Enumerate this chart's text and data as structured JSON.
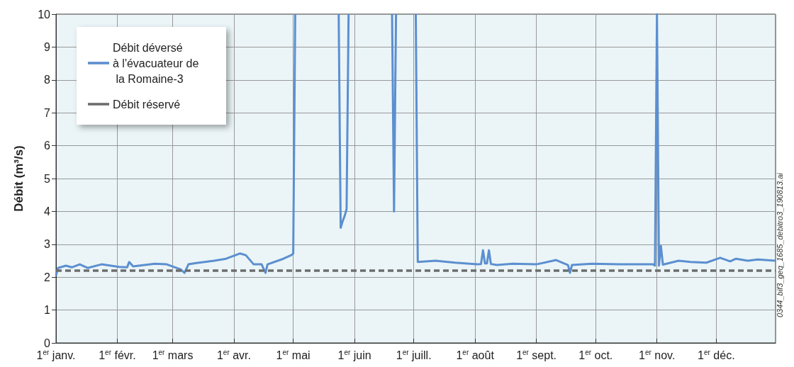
{
  "chart_data": {
    "type": "line",
    "ylabel": "Débit (m³/s)",
    "xlim": [
      "--01-01",
      "--12-31"
    ],
    "xticks": [
      {
        "value": "--01-01",
        "label": "1$^{er}$ janv."
      },
      {
        "value": "--02-01",
        "label": "1$^{er}$ févr."
      },
      {
        "value": "--03-01",
        "label": "1$^{er}$ mars"
      },
      {
        "value": "--04-01",
        "label": "1$^{er}$ avr."
      },
      {
        "value": "--05-01",
        "label": "1$^{er}$ mai"
      },
      {
        "value": "--06-01",
        "label": "1$^{er}$ juin"
      },
      {
        "value": "--07-01",
        "label": "1$^{er}$ juill."
      },
      {
        "value": "--08-01",
        "label": "1$^{er}$ août"
      },
      {
        "value": "--09-01",
        "label": "1$^{er}$ sept."
      },
      {
        "value": "--10-01",
        "label": "1$^{er}$ oct."
      },
      {
        "value": "--11-01",
        "label": "1$^{er}$ nov."
      },
      {
        "value": "--12-01",
        "label": "1$^{er}$ déc."
      }
    ],
    "ylim": [
      0,
      10
    ],
    "yticks": [
      0,
      1,
      2,
      3,
      4,
      5,
      6,
      7,
      8,
      9,
      10
    ],
    "grid": true,
    "legend": "top left",
    "series": [
      {
        "name": "Débit déversé à l'évacuateur de la Romaine-3",
        "color": "#5b8fcf",
        "line_style": "solid",
        "x": [
          "--01-01",
          "--01-02",
          "--01-06",
          "--01-09",
          "--01-13",
          "--01-17",
          "--01-24",
          "--02-02",
          "--02-06",
          "--02-07",
          "--02-09",
          "--02-20",
          "--02-26",
          "--03-05",
          "--03-07",
          "--03-09",
          "--03-13",
          "--03-22",
          "--03-28",
          "--04-04",
          "--04-07",
          "--04-11",
          "--04-15",
          "--04-17",
          "--04-18",
          "--04-26",
          "--04-30",
          "--05-01",
          "--05-02",
          "--05-10",
          "--05-24",
          "--05-25",
          "--05-26",
          "--05-27",
          "--05-28",
          "--05-29",
          "--06-10",
          "--06-20",
          "--06-21",
          "--06-22",
          "--06-28",
          "--07-02",
          "--07-03",
          "--07-12",
          "--07-22",
          "--08-02",
          "--08-04",
          "--08-05",
          "--08-06",
          "--08-07",
          "--08-08",
          "--08-09",
          "--08-12",
          "--08-20",
          "--09-01",
          "--09-11",
          "--09-17",
          "--09-18",
          "--09-19",
          "--09-29",
          "--10-13",
          "--10-30",
          "--10-31",
          "--11-01",
          "--11-02",
          "--11-03",
          "--11-04",
          "--11-12",
          "--11-18",
          "--11-26",
          "--12-03",
          "--12-08",
          "--12-11",
          "--12-17",
          "--12-22",
          "--12-31"
        ],
        "values": [
          2.05,
          2.28,
          2.35,
          2.3,
          2.39,
          2.28,
          2.39,
          2.31,
          2.3,
          2.46,
          2.33,
          2.41,
          2.39,
          2.24,
          2.13,
          2.39,
          2.43,
          2.5,
          2.56,
          2.72,
          2.67,
          2.39,
          2.39,
          2.13,
          2.39,
          2.56,
          2.67,
          2.72,
          10,
          null,
          10,
          3.5,
          3.7,
          3.86,
          4.07,
          10,
          null,
          10,
          4.0,
          10,
          null,
          10,
          2.46,
          2.5,
          2.44,
          2.39,
          2.4,
          2.82,
          2.42,
          2.42,
          2.82,
          2.4,
          2.37,
          2.41,
          2.39,
          2.52,
          2.37,
          2.13,
          2.37,
          2.41,
          2.39,
          2.39,
          2.35,
          10,
          2.35,
          2.95,
          2.38,
          2.5,
          2.46,
          2.44,
          2.59,
          2.48,
          2.56,
          2.5,
          2.54,
          2.5
        ]
      },
      {
        "name": "Débit réservé",
        "color": "#6d6d6d",
        "line_style": "dashed",
        "x": [
          "--01-01",
          "--12-31"
        ],
        "values": [
          2.2,
          2.2
        ]
      }
    ],
    "annotations": [
      "0344_bif3_geq_1685_debitro3_190813.ai"
    ]
  }
}
